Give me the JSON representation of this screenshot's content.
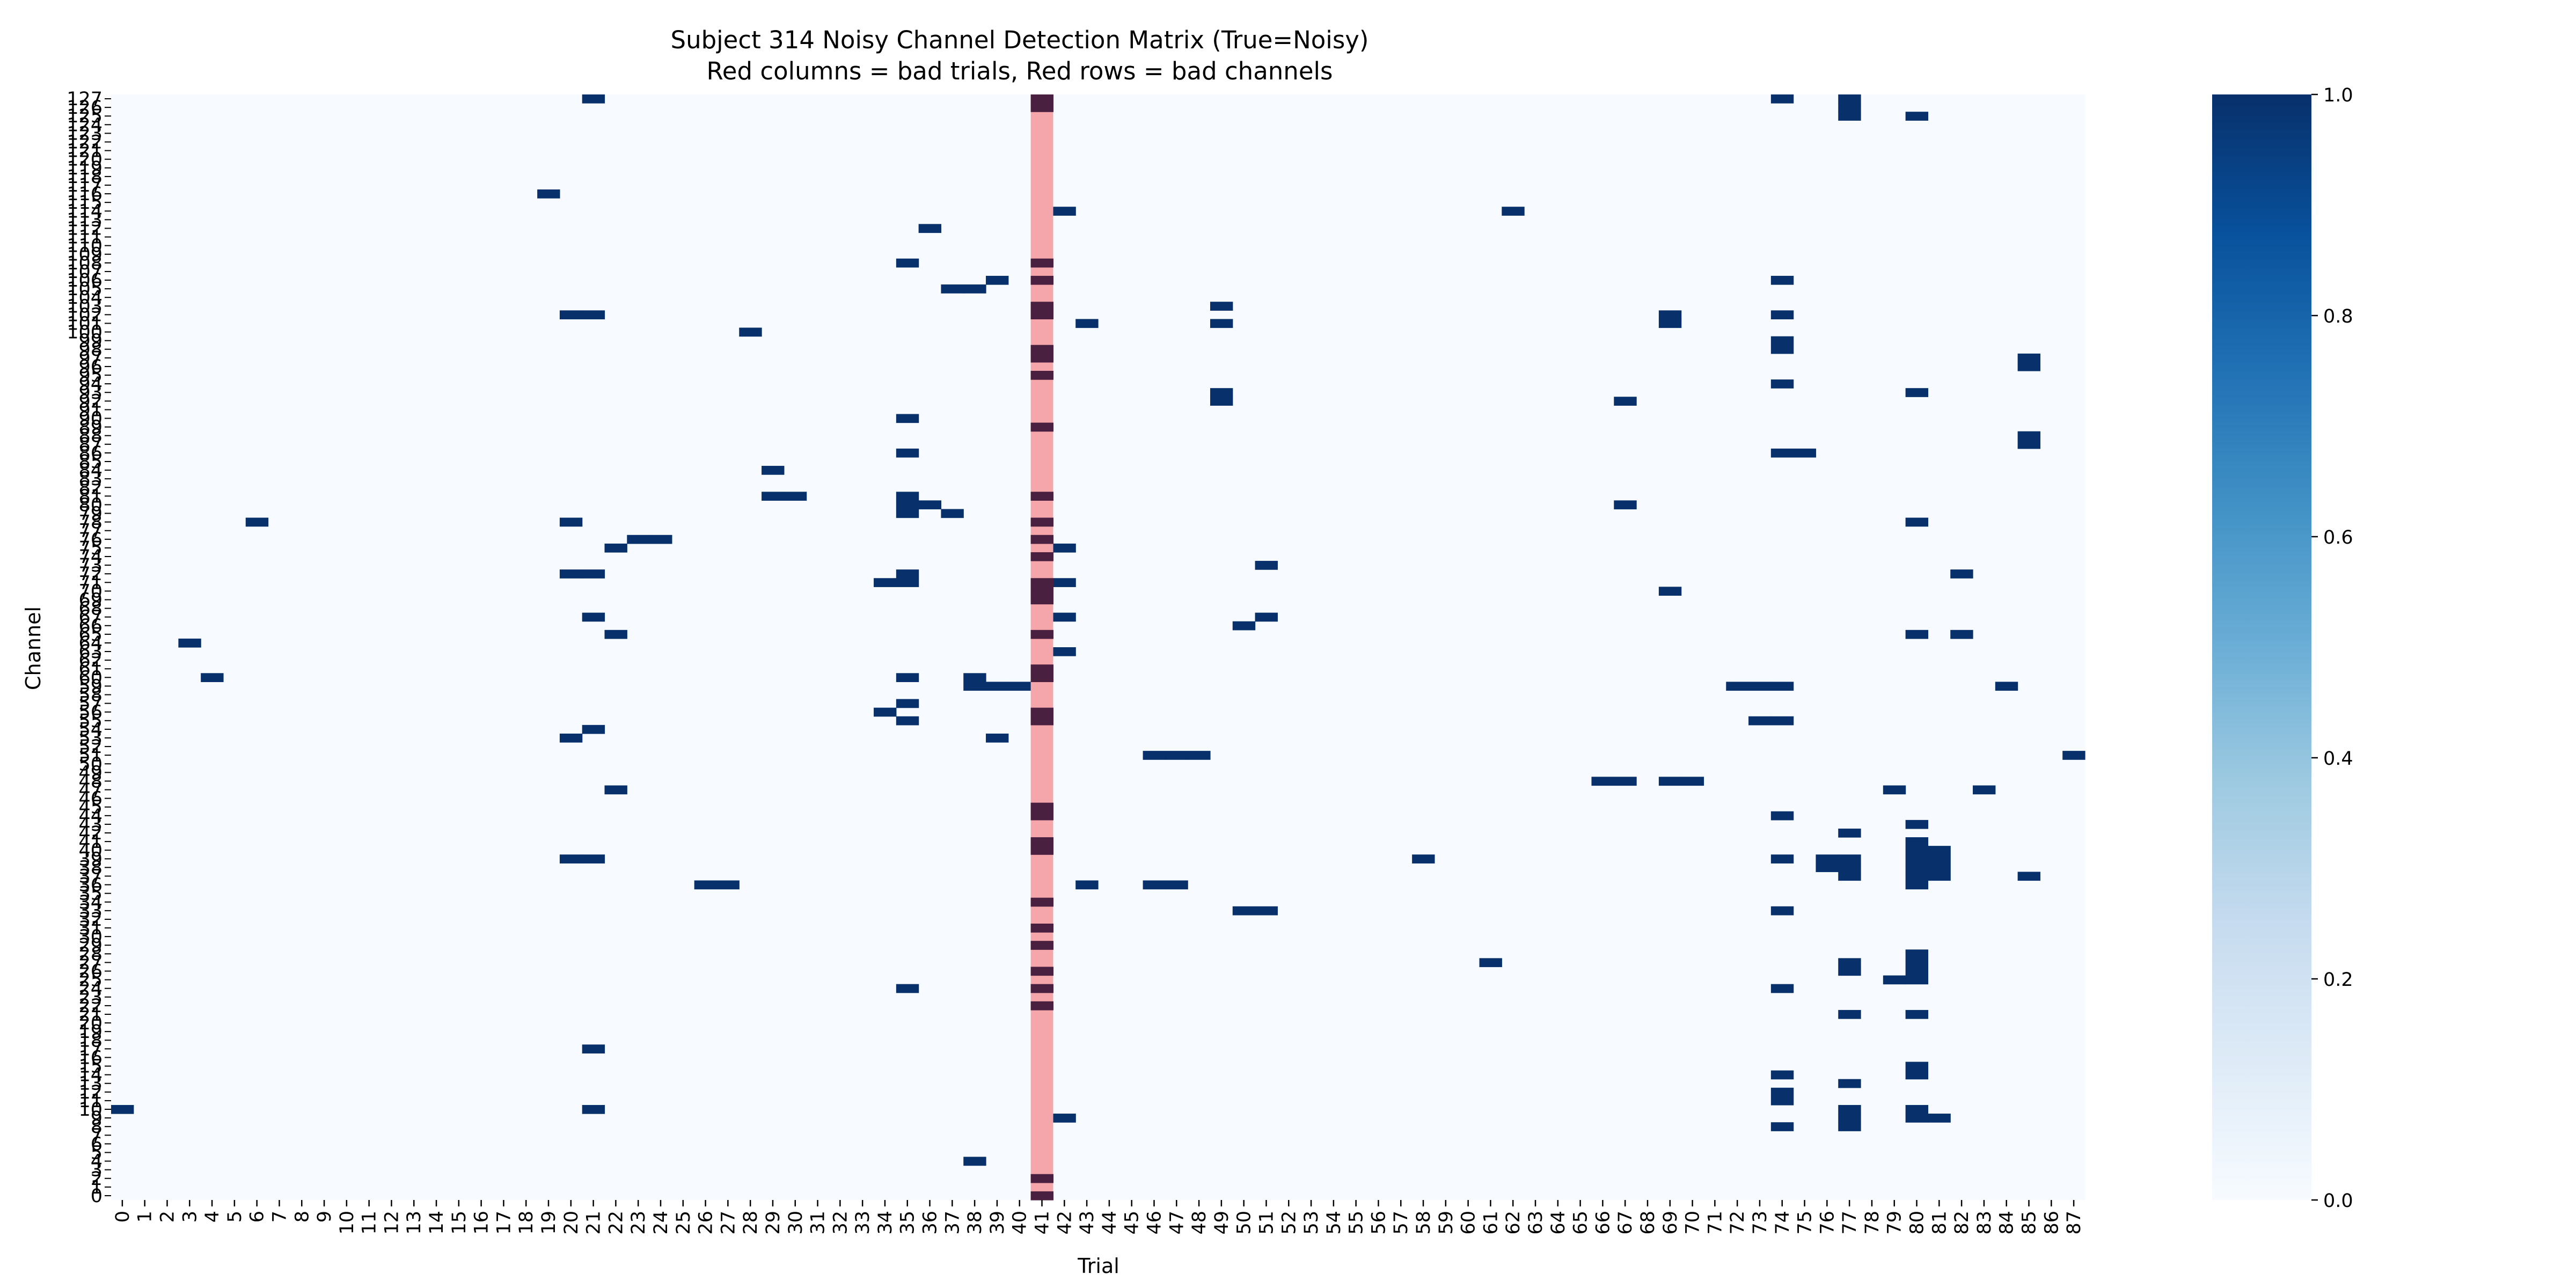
{
  "chart_data": {
    "type": "heatmap",
    "title": "Subject 314 Noisy Channel Detection Matrix (True=Noisy)",
    "subtitle": "Red columns = bad trials, Red rows = bad channels",
    "xlabel": "Trial",
    "ylabel": "Channel",
    "n_trials": 88,
    "n_channels": 128,
    "x_ticks": [
      0,
      1,
      2,
      3,
      4,
      5,
      6,
      7,
      8,
      9,
      10,
      11,
      12,
      13,
      14,
      15,
      16,
      17,
      18,
      19,
      20,
      21,
      22,
      23,
      24,
      25,
      26,
      27,
      28,
      29,
      30,
      31,
      32,
      33,
      34,
      35,
      36,
      37,
      38,
      39,
      40,
      41,
      42,
      43,
      44,
      45,
      46,
      47,
      48,
      49,
      50,
      51,
      52,
      53,
      54,
      55,
      56,
      57,
      58,
      59,
      60,
      61,
      62,
      63,
      64,
      65,
      66,
      67,
      68,
      69,
      70,
      71,
      72,
      73,
      74,
      75,
      76,
      77,
      78,
      79,
      80,
      81,
      82,
      83,
      84,
      85,
      86,
      87
    ],
    "y_ticks": [
      127,
      126,
      125,
      124,
      123,
      122,
      121,
      120,
      119,
      118,
      117,
      116,
      115,
      114,
      113,
      112,
      111,
      110,
      109,
      108,
      107,
      106,
      105,
      104,
      103,
      102,
      101,
      100,
      99,
      98,
      97,
      96,
      95,
      94,
      93,
      92,
      91,
      90,
      89,
      88,
      87,
      86,
      85,
      84,
      83,
      82,
      81,
      80,
      79,
      78,
      77,
      76,
      75,
      74,
      73,
      72,
      71,
      70,
      69,
      68,
      67,
      66,
      65,
      64,
      63,
      62,
      61,
      60,
      59,
      58,
      57,
      56,
      55,
      54,
      53,
      52,
      51,
      50,
      49,
      48,
      47,
      46,
      45,
      44,
      43,
      42,
      41,
      40,
      39,
      38,
      37,
      36,
      35,
      34,
      33,
      32,
      31,
      30,
      29,
      28,
      27,
      26,
      25,
      24,
      23,
      22,
      21,
      20,
      19,
      18,
      17,
      16,
      15,
      14,
      13,
      12,
      11,
      10,
      9,
      8,
      7,
      6,
      5,
      4,
      3,
      2,
      1,
      0
    ],
    "bad_trials": [
      41
    ],
    "bad_channels": [],
    "colorbar": {
      "min": 0.0,
      "max": 1.0,
      "ticks": [
        "0.0",
        "0.2",
        "0.4",
        "0.6",
        "0.8",
        "1.0"
      ]
    },
    "colors": {
      "low": "#f7fbff",
      "high": "#08306b",
      "bad_overlay": "#f4a6ab",
      "bad_noisy": "#4a2040"
    },
    "noisy_cells": [
      [
        0,
        10
      ],
      [
        3,
        64
      ],
      [
        4,
        60
      ],
      [
        6,
        78
      ],
      [
        19,
        116
      ],
      [
        20,
        39
      ],
      [
        20,
        53
      ],
      [
        20,
        72
      ],
      [
        20,
        78
      ],
      [
        20,
        102
      ],
      [
        21,
        10
      ],
      [
        21,
        17
      ],
      [
        21,
        39
      ],
      [
        21,
        54
      ],
      [
        21,
        67
      ],
      [
        21,
        72
      ],
      [
        21,
        102
      ],
      [
        21,
        127
      ],
      [
        22,
        47
      ],
      [
        22,
        65
      ],
      [
        22,
        75
      ],
      [
        23,
        76
      ],
      [
        24,
        76
      ],
      [
        26,
        36
      ],
      [
        27,
        36
      ],
      [
        28,
        100
      ],
      [
        29,
        81
      ],
      [
        29,
        84
      ],
      [
        30,
        81
      ],
      [
        34,
        56
      ],
      [
        34,
        71
      ],
      [
        35,
        24
      ],
      [
        35,
        55
      ],
      [
        35,
        57
      ],
      [
        35,
        60
      ],
      [
        35,
        71
      ],
      [
        35,
        72
      ],
      [
        35,
        79
      ],
      [
        35,
        80
      ],
      [
        35,
        81
      ],
      [
        35,
        86
      ],
      [
        35,
        90
      ],
      [
        35,
        108
      ],
      [
        36,
        80
      ],
      [
        36,
        112
      ],
      [
        37,
        79
      ],
      [
        37,
        105
      ],
      [
        38,
        4
      ],
      [
        38,
        59
      ],
      [
        38,
        60
      ],
      [
        38,
        105
      ],
      [
        39,
        53
      ],
      [
        39,
        59
      ],
      [
        39,
        106
      ],
      [
        40,
        59
      ],
      [
        41,
        0
      ],
      [
        41,
        2
      ],
      [
        41,
        22
      ],
      [
        41,
        24
      ],
      [
        41,
        26
      ],
      [
        41,
        29
      ],
      [
        41,
        31
      ],
      [
        41,
        34
      ],
      [
        41,
        40
      ],
      [
        41,
        41
      ],
      [
        41,
        44
      ],
      [
        41,
        45
      ],
      [
        41,
        55
      ],
      [
        41,
        56
      ],
      [
        41,
        60
      ],
      [
        41,
        61
      ],
      [
        41,
        65
      ],
      [
        41,
        69
      ],
      [
        41,
        70
      ],
      [
        41,
        71
      ],
      [
        41,
        74
      ],
      [
        41,
        76
      ],
      [
        41,
        78
      ],
      [
        41,
        81
      ],
      [
        41,
        89
      ],
      [
        41,
        95
      ],
      [
        41,
        97
      ],
      [
        41,
        98
      ],
      [
        41,
        102
      ],
      [
        41,
        103
      ],
      [
        41,
        106
      ],
      [
        41,
        108
      ],
      [
        41,
        126
      ],
      [
        41,
        127
      ],
      [
        42,
        9
      ],
      [
        42,
        63
      ],
      [
        42,
        67
      ],
      [
        42,
        71
      ],
      [
        42,
        75
      ],
      [
        42,
        114
      ],
      [
        43,
        36
      ],
      [
        43,
        101
      ],
      [
        46,
        36
      ],
      [
        46,
        51
      ],
      [
        47,
        36
      ],
      [
        47,
        51
      ],
      [
        48,
        51
      ],
      [
        49,
        92
      ],
      [
        49,
        93
      ],
      [
        49,
        101
      ],
      [
        49,
        103
      ],
      [
        50,
        33
      ],
      [
        50,
        66
      ],
      [
        51,
        33
      ],
      [
        51,
        67
      ],
      [
        51,
        73
      ],
      [
        58,
        39
      ],
      [
        61,
        27
      ],
      [
        62,
        114
      ],
      [
        66,
        48
      ],
      [
        67,
        48
      ],
      [
        67,
        80
      ],
      [
        67,
        92
      ],
      [
        69,
        48
      ],
      [
        69,
        70
      ],
      [
        69,
        101
      ],
      [
        69,
        102
      ],
      [
        70,
        48
      ],
      [
        72,
        59
      ],
      [
        73,
        55
      ],
      [
        73,
        59
      ],
      [
        74,
        8
      ],
      [
        74,
        11
      ],
      [
        74,
        12
      ],
      [
        74,
        14
      ],
      [
        74,
        24
      ],
      [
        74,
        33
      ],
      [
        74,
        39
      ],
      [
        74,
        44
      ],
      [
        74,
        55
      ],
      [
        74,
        59
      ],
      [
        74,
        86
      ],
      [
        74,
        94
      ],
      [
        74,
        98
      ],
      [
        74,
        99
      ],
      [
        74,
        102
      ],
      [
        74,
        106
      ],
      [
        74,
        127
      ],
      [
        75,
        86
      ],
      [
        76,
        38
      ],
      [
        76,
        39
      ],
      [
        77,
        8
      ],
      [
        77,
        9
      ],
      [
        77,
        10
      ],
      [
        77,
        13
      ],
      [
        77,
        21
      ],
      [
        77,
        26
      ],
      [
        77,
        27
      ],
      [
        77,
        37
      ],
      [
        77,
        38
      ],
      [
        77,
        39
      ],
      [
        77,
        42
      ],
      [
        77,
        125
      ],
      [
        77,
        126
      ],
      [
        77,
        127
      ],
      [
        79,
        25
      ],
      [
        79,
        47
      ],
      [
        80,
        9
      ],
      [
        80,
        10
      ],
      [
        80,
        14
      ],
      [
        80,
        15
      ],
      [
        80,
        21
      ],
      [
        80,
        25
      ],
      [
        80,
        26
      ],
      [
        80,
        27
      ],
      [
        80,
        28
      ],
      [
        80,
        36
      ],
      [
        80,
        37
      ],
      [
        80,
        38
      ],
      [
        80,
        39
      ],
      [
        80,
        40
      ],
      [
        80,
        41
      ],
      [
        80,
        43
      ],
      [
        80,
        65
      ],
      [
        80,
        78
      ],
      [
        80,
        93
      ],
      [
        80,
        125
      ],
      [
        81,
        9
      ],
      [
        81,
        37
      ],
      [
        81,
        38
      ],
      [
        81,
        39
      ],
      [
        81,
        40
      ],
      [
        82,
        65
      ],
      [
        82,
        72
      ],
      [
        83,
        47
      ],
      [
        84,
        59
      ],
      [
        85,
        37
      ],
      [
        85,
        87
      ],
      [
        85,
        88
      ],
      [
        85,
        96
      ],
      [
        85,
        97
      ],
      [
        87,
        51
      ]
    ]
  }
}
